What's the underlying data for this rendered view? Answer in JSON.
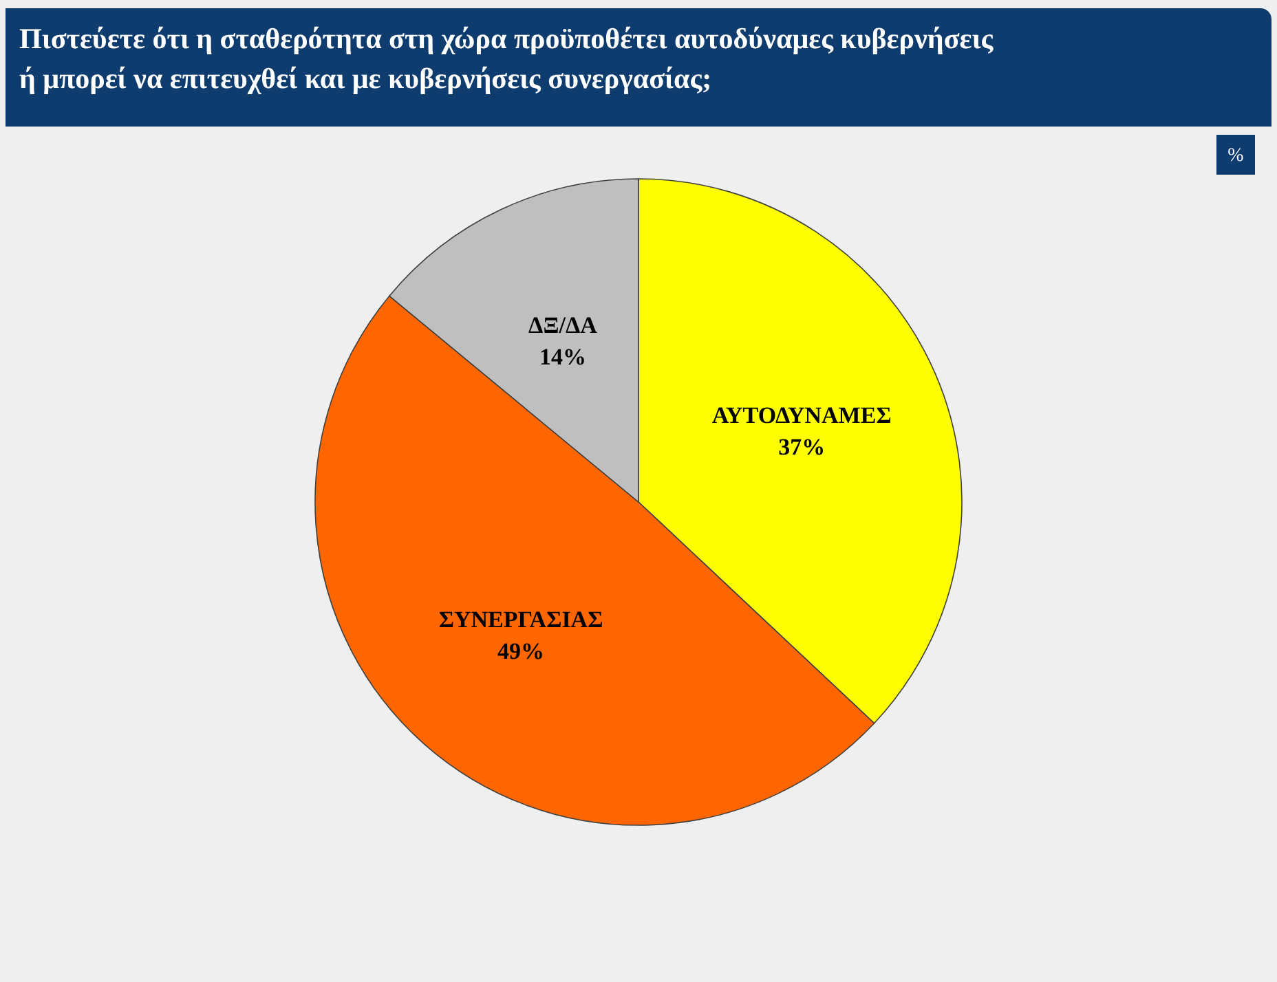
{
  "chart_data": {
    "type": "pie",
    "title": "Πιστεύετε ότι η σταθερότητα στη χώρα προϋποθέτει αυτοδύναμες κυβερνήσεις\nή μπορεί να επιτευχθεί και με κυβερνήσεις συνεργασίας;",
    "categories": [
      "ΑΥΤΟΔΥΝΑΜΕΣ",
      "ΣΥΝΕΡΓΑΣΙΑΣ",
      "ΔΞ/ΔΑ"
    ],
    "values": [
      37,
      49,
      14
    ],
    "colors": [
      "#ffff00",
      "#ff6600",
      "#bfbfbf"
    ],
    "value_labels": [
      "37%",
      "49%",
      "14%"
    ],
    "annotations": [
      "%"
    ]
  }
}
